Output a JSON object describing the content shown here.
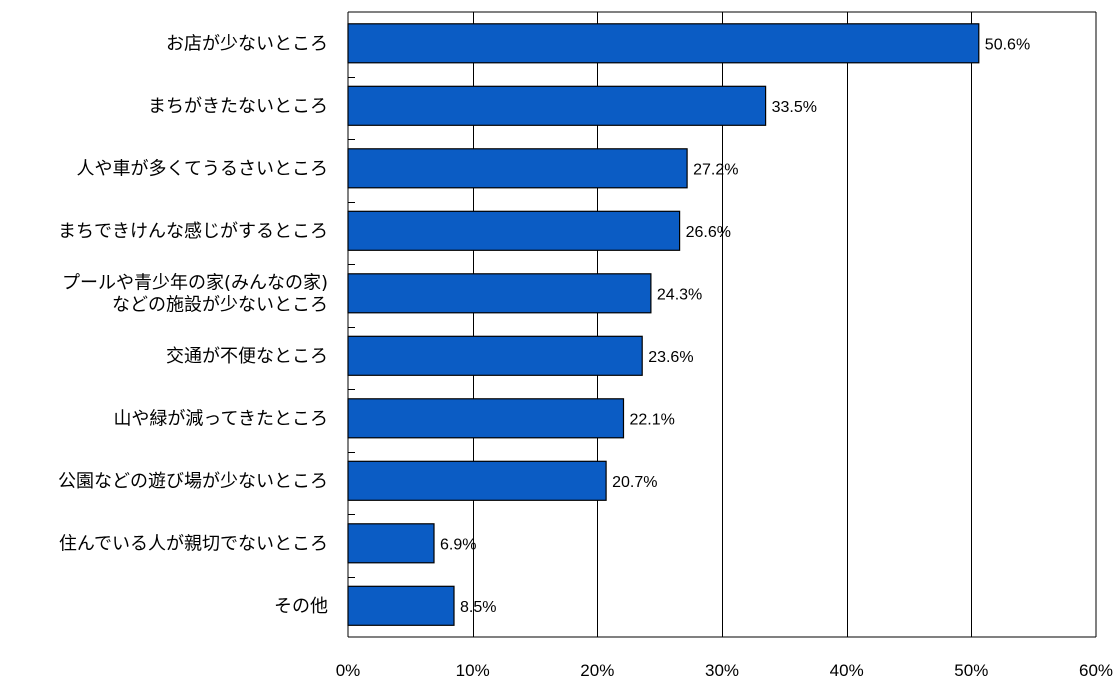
{
  "chart_data": {
    "type": "bar",
    "orientation": "horizontal",
    "title": "",
    "xlabel": "",
    "ylabel": "",
    "categories": [
      [
        "お店が少ないところ"
      ],
      [
        "まちがきたないところ"
      ],
      [
        "人や車が多くてうるさいところ"
      ],
      [
        "まちできけんな感じがするところ"
      ],
      [
        "プールや青少年の家(みんなの家)",
        "などの施設が少ないところ"
      ],
      [
        "交通が不便なところ"
      ],
      [
        "山や緑が減ってきたところ"
      ],
      [
        "公園などの遊び場が少ないところ"
      ],
      [
        "住んでいる人が親切でないところ"
      ],
      [
        "その他"
      ]
    ],
    "values": [
      50.6,
      33.5,
      27.2,
      26.6,
      24.3,
      23.6,
      22.1,
      20.7,
      6.9,
      8.5
    ],
    "value_labels": [
      "50.6%",
      "33.5%",
      "27.2%",
      "26.6%",
      "24.3%",
      "23.6%",
      "22.1%",
      "20.7%",
      "6.9%",
      "8.5%"
    ],
    "xlim": [
      0,
      60
    ],
    "xticks": [
      0,
      10,
      20,
      30,
      40,
      50,
      60
    ],
    "xtick_labels": [
      "0%",
      "10%",
      "20%",
      "30%",
      "40%",
      "50%",
      "60%"
    ],
    "grid": "vertical",
    "legend": "none",
    "bar_color": "#0b5cc4",
    "bar_edge_color": "#000000",
    "grid_color": "#000000"
  }
}
